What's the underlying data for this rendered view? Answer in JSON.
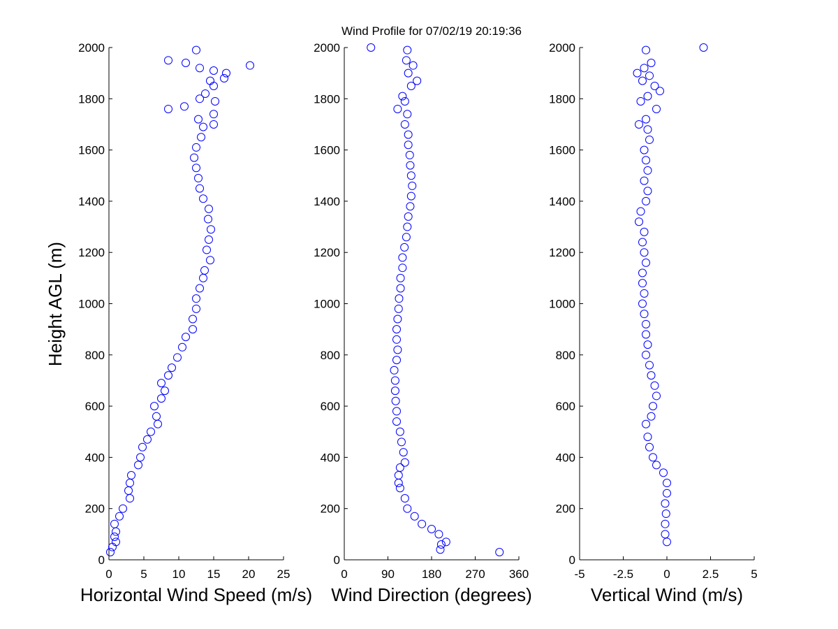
{
  "chart_data": [
    {
      "type": "scatter",
      "title": "Wind Profile for  07/02/19 20:19:36",
      "xlabel": "Horizontal Wind Speed (m/s)",
      "ylabel": "Height AGL (m)",
      "color": "#0000ff",
      "xlim": [
        0,
        25
      ],
      "xticks": [
        0,
        5,
        10,
        15,
        20,
        25
      ],
      "ylim": [
        0,
        2000
      ],
      "yticks": [
        0,
        200,
        400,
        600,
        800,
        1000,
        1200,
        1400,
        1600,
        1800,
        2000
      ],
      "x": [
        0.2,
        0.5,
        1,
        0.8,
        1,
        0.8,
        1.5,
        2,
        3,
        2.8,
        3,
        3.2,
        4.2,
        4.5,
        4.8,
        5.5,
        6,
        7,
        6.8,
        6.5,
        7.5,
        8,
        7.5,
        8.5,
        9,
        9.8,
        10.5,
        11,
        12,
        12,
        12.5,
        12.5,
        13,
        13.5,
        13.7,
        14.5,
        14,
        14.3,
        14.6,
        14.2,
        14.3,
        13.5,
        13,
        12.8,
        12.5,
        12.2,
        12.5,
        13.2,
        13.5,
        15,
        12.8,
        15,
        8.5,
        10.8,
        15.2,
        13,
        13.8,
        15,
        14.5,
        16.5,
        16.8,
        15,
        13,
        20.2,
        11,
        8.5,
        12.5
      ],
      "y": [
        30,
        50,
        70,
        90,
        110,
        140,
        170,
        200,
        240,
        270,
        300,
        330,
        370,
        400,
        440,
        470,
        500,
        530,
        560,
        600,
        630,
        660,
        690,
        720,
        750,
        790,
        830,
        870,
        900,
        940,
        980,
        1020,
        1060,
        1100,
        1130,
        1170,
        1210,
        1250,
        1290,
        1330,
        1370,
        1410,
        1450,
        1490,
        1530,
        1570,
        1610,
        1650,
        1690,
        1700,
        1720,
        1740,
        1760,
        1770,
        1790,
        1800,
        1820,
        1850,
        1870,
        1880,
        1900,
        1910,
        1920,
        1930,
        1940,
        1950,
        1990
      ]
    },
    {
      "type": "scatter",
      "xlabel": "Wind Direction (degrees)",
      "color": "#0000ff",
      "xlim": [
        0,
        360
      ],
      "xticks": [
        0,
        90,
        180,
        270,
        360
      ],
      "ylim": [
        0,
        2000
      ],
      "yticks": [
        0,
        200,
        400,
        600,
        800,
        1000,
        1200,
        1400,
        1600,
        1800,
        2000
      ],
      "x": [
        320,
        198,
        200,
        210,
        195,
        180,
        160,
        145,
        130,
        125,
        115,
        112,
        112,
        115,
        125,
        122,
        118,
        115,
        108,
        108,
        106,
        105,
        105,
        103,
        108,
        110,
        108,
        108,
        110,
        112,
        113,
        116,
        116,
        120,
        120,
        124,
        128,
        130,
        132,
        136,
        138,
        140,
        138,
        136,
        135,
        132,
        132,
        125,
        130,
        110,
        125,
        120,
        138,
        150,
        132,
        142,
        128,
        130,
        55
      ],
      "y": [
        30,
        40,
        60,
        70,
        100,
        120,
        140,
        170,
        200,
        240,
        280,
        300,
        330,
        360,
        380,
        420,
        460,
        500,
        540,
        580,
        620,
        660,
        700,
        740,
        780,
        820,
        860,
        900,
        940,
        980,
        1020,
        1060,
        1100,
        1140,
        1180,
        1220,
        1260,
        1300,
        1340,
        1380,
        1420,
        1460,
        1500,
        1540,
        1580,
        1620,
        1660,
        1700,
        1740,
        1760,
        1790,
        1810,
        1850,
        1870,
        1900,
        1930,
        1950,
        1990,
        2000
      ]
    },
    {
      "type": "scatter",
      "xlabel": "Vertical Wind (m/s)",
      "color": "#0000ff",
      "xlim": [
        -5,
        5
      ],
      "xticks": [
        -5,
        -2.5,
        0,
        2.5,
        5
      ],
      "ylim": [
        0,
        2000
      ],
      "yticks": [
        0,
        200,
        400,
        600,
        800,
        1000,
        1200,
        1400,
        1600,
        1800,
        2000
      ],
      "x": [
        0,
        -0.1,
        -0.1,
        -0.05,
        -0.1,
        0,
        0,
        -0.2,
        -0.6,
        -0.8,
        -1,
        -1.1,
        -1.2,
        -0.9,
        -0.8,
        -0.6,
        -0.7,
        -0.9,
        -1,
        -1.2,
        -1.1,
        -1.2,
        -1.2,
        -1.3,
        -1.4,
        -1.3,
        -1.4,
        -1.4,
        -1.2,
        -1.3,
        -1.4,
        -1.3,
        -1.6,
        -1.5,
        -1.2,
        -1.1,
        -1.3,
        -1.1,
        -1.2,
        -1.3,
        -1,
        -1.1,
        -1.6,
        -1.2,
        -0.6,
        -1.5,
        -1.1,
        -0.4,
        -0.7,
        -1.4,
        -1,
        -1.7,
        -1.3,
        -0.9,
        -1.2,
        2.1
      ],
      "y": [
        70,
        100,
        140,
        180,
        220,
        260,
        300,
        340,
        370,
        400,
        440,
        480,
        530,
        560,
        600,
        640,
        680,
        720,
        760,
        800,
        840,
        880,
        920,
        960,
        1000,
        1040,
        1080,
        1120,
        1160,
        1200,
        1240,
        1280,
        1320,
        1360,
        1400,
        1440,
        1480,
        1520,
        1560,
        1600,
        1640,
        1680,
        1700,
        1720,
        1760,
        1790,
        1810,
        1830,
        1850,
        1870,
        1890,
        1900,
        1920,
        1940,
        1990,
        2000
      ]
    }
  ]
}
